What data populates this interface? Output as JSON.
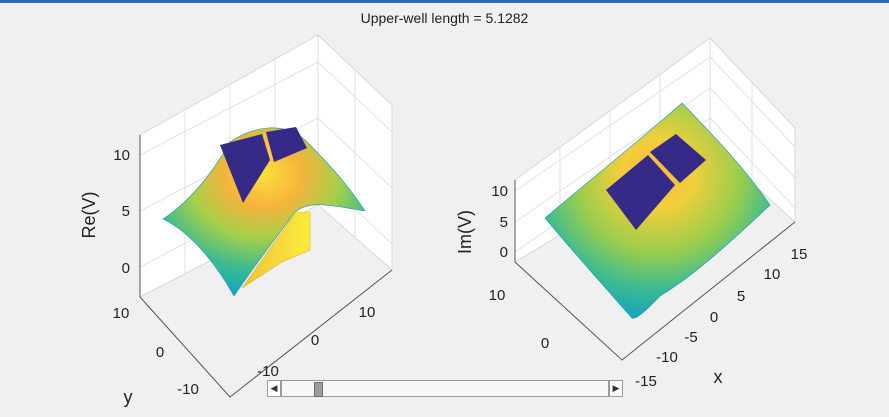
{
  "figure": {
    "title": "Upper-well length = 5.1282",
    "left_plot": {
      "zlabel": "Re(V)",
      "ylabel": "y",
      "z_ticks": [
        "10",
        "5",
        "0"
      ],
      "y_ticks": [
        "10",
        "0",
        "-10"
      ],
      "x_ticks": [
        "-10",
        "0",
        "10"
      ]
    },
    "right_plot": {
      "zlabel": "Im(V)",
      "xlabel": "x",
      "z_ticks": [
        "10",
        "5",
        "0"
      ],
      "y_ticks": [
        "10",
        "0"
      ],
      "x_ticks": [
        "15",
        "10",
        "5",
        "0",
        "-5",
        "-10",
        "-15"
      ]
    }
  },
  "slider": {
    "left_arrow": "◀",
    "right_arrow": "▶",
    "value_fraction": 0.1
  },
  "colors": {
    "top_bar": "#2a6fb5",
    "well_fill": "#352a87",
    "surface_edge": "#0fa0c8",
    "surface_mid": "#5cc863",
    "surface_peak": "#f6c43a"
  }
}
